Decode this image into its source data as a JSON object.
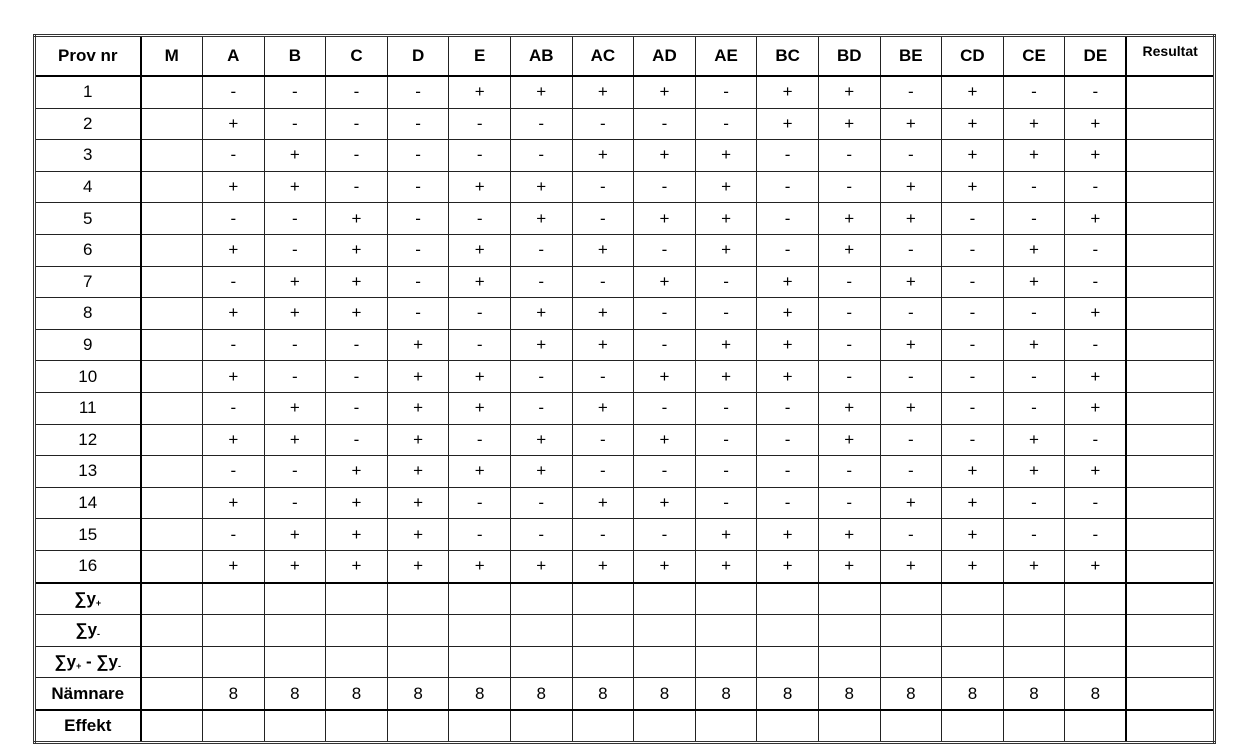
{
  "headers": [
    "Prov nr",
    "M",
    "A",
    "B",
    "C",
    "D",
    "E",
    "AB",
    "AC",
    "AD",
    "AE",
    "BC",
    "BD",
    "BE",
    "CD",
    "CE",
    "DE",
    "Resultat"
  ],
  "rows": [
    {
      "nr": "1",
      "signs": [
        "-",
        "-",
        "-",
        "-",
        "+",
        "+",
        "+",
        "+",
        "-",
        "+",
        "+",
        "-",
        "+",
        "-",
        "-"
      ]
    },
    {
      "nr": "2",
      "signs": [
        "+",
        "-",
        "-",
        "-",
        "-",
        "-",
        "-",
        "-",
        "-",
        "+",
        "+",
        "+",
        "+",
        "+",
        "+"
      ]
    },
    {
      "nr": "3",
      "signs": [
        "-",
        "+",
        "-",
        "-",
        "-",
        "-",
        "+",
        "+",
        "+",
        "-",
        "-",
        "-",
        "+",
        "+",
        "+"
      ]
    },
    {
      "nr": "4",
      "signs": [
        "+",
        "+",
        "-",
        "-",
        "+",
        "+",
        "-",
        "-",
        "+",
        "-",
        "-",
        "+",
        "+",
        "-",
        "-"
      ]
    },
    {
      "nr": "5",
      "signs": [
        "-",
        "-",
        "+",
        "-",
        "-",
        "+",
        "-",
        "+",
        "+",
        "-",
        "+",
        "+",
        "-",
        "-",
        "+"
      ]
    },
    {
      "nr": "6",
      "signs": [
        "+",
        "-",
        "+",
        "-",
        "+",
        "-",
        "+",
        "-",
        "+",
        "-",
        "+",
        "-",
        "-",
        "+",
        "-"
      ]
    },
    {
      "nr": "7",
      "signs": [
        "-",
        "+",
        "+",
        "-",
        "+",
        "-",
        "-",
        "+",
        "-",
        "+",
        "-",
        "+",
        "-",
        "+",
        "-"
      ]
    },
    {
      "nr": "8",
      "signs": [
        "+",
        "+",
        "+",
        "-",
        "-",
        "+",
        "+",
        "-",
        "-",
        "+",
        "-",
        "-",
        "-",
        "-",
        "+"
      ]
    },
    {
      "nr": "9",
      "signs": [
        "-",
        "-",
        "-",
        "+",
        "-",
        "+",
        "+",
        "-",
        "+",
        "+",
        "-",
        "+",
        "-",
        "+",
        "-"
      ]
    },
    {
      "nr": "10",
      "signs": [
        "+",
        "-",
        "-",
        "+",
        "+",
        "-",
        "-",
        "+",
        "+",
        "+",
        "-",
        "-",
        "-",
        "-",
        "+"
      ]
    },
    {
      "nr": "11",
      "signs": [
        "-",
        "+",
        "-",
        "+",
        "+",
        "-",
        "+",
        "-",
        "-",
        "-",
        "+",
        "+",
        "-",
        "-",
        "+"
      ]
    },
    {
      "nr": "12",
      "signs": [
        "+",
        "+",
        "-",
        "+",
        "-",
        "+",
        "-",
        "+",
        "-",
        "-",
        "+",
        "-",
        "-",
        "+",
        "-"
      ]
    },
    {
      "nr": "13",
      "signs": [
        "-",
        "-",
        "+",
        "+",
        "+",
        "+",
        "-",
        "-",
        "-",
        "-",
        "-",
        "-",
        "+",
        "+",
        "+"
      ]
    },
    {
      "nr": "14",
      "signs": [
        "+",
        "-",
        "+",
        "+",
        "-",
        "-",
        "+",
        "+",
        "-",
        "-",
        "-",
        "+",
        "+",
        "-",
        "-"
      ]
    },
    {
      "nr": "15",
      "signs": [
        "-",
        "+",
        "+",
        "+",
        "-",
        "-",
        "-",
        "-",
        "+",
        "+",
        "+",
        "-",
        "+",
        "-",
        "-"
      ]
    },
    {
      "nr": "16",
      "signs": [
        "+",
        "+",
        "+",
        "+",
        "+",
        "+",
        "+",
        "+",
        "+",
        "+",
        "+",
        "+",
        "+",
        "+",
        "+"
      ]
    }
  ],
  "summary": [
    {
      "label": "∑y",
      "sub": "+",
      "label2": "",
      "sub2": "",
      "values": []
    },
    {
      "label": "∑y",
      "sub": "-",
      "label2": "",
      "sub2": "",
      "values": []
    },
    {
      "label": "∑y",
      "sub": "+",
      "label2": " - ∑y",
      "sub2": "-",
      "values": []
    },
    {
      "label": "Nämnare",
      "sub": "",
      "label2": "",
      "sub2": "",
      "values": [
        "8",
        "8",
        "8",
        "8",
        "8",
        "8",
        "8",
        "8",
        "8",
        "8",
        "8",
        "8",
        "8",
        "8",
        "8"
      ]
    },
    {
      "label": "Effekt",
      "sub": "",
      "label2": "",
      "sub2": "",
      "values": []
    }
  ]
}
